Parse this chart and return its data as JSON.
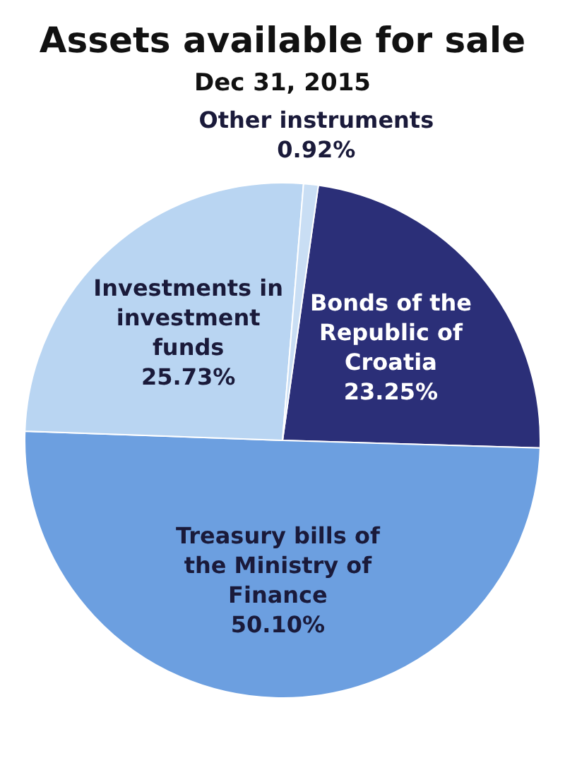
{
  "chart_data": {
    "type": "pie",
    "title": "Assets available for sale",
    "subtitle": "Dec 31, 2015",
    "categories": [
      "Bonds of the Republic of Croatia",
      "Treasury bills of the Ministry of Finance",
      "Investments in investment funds",
      "Other instruments"
    ],
    "values": [
      23.25,
      50.1,
      25.73,
      0.92
    ],
    "value_labels": [
      "23.25%",
      "50.10%",
      "25.73%",
      "0.92%"
    ],
    "colors": [
      "#2b2f78",
      "#6c9fe0",
      "#b9d5f2",
      "#c9def4"
    ]
  }
}
